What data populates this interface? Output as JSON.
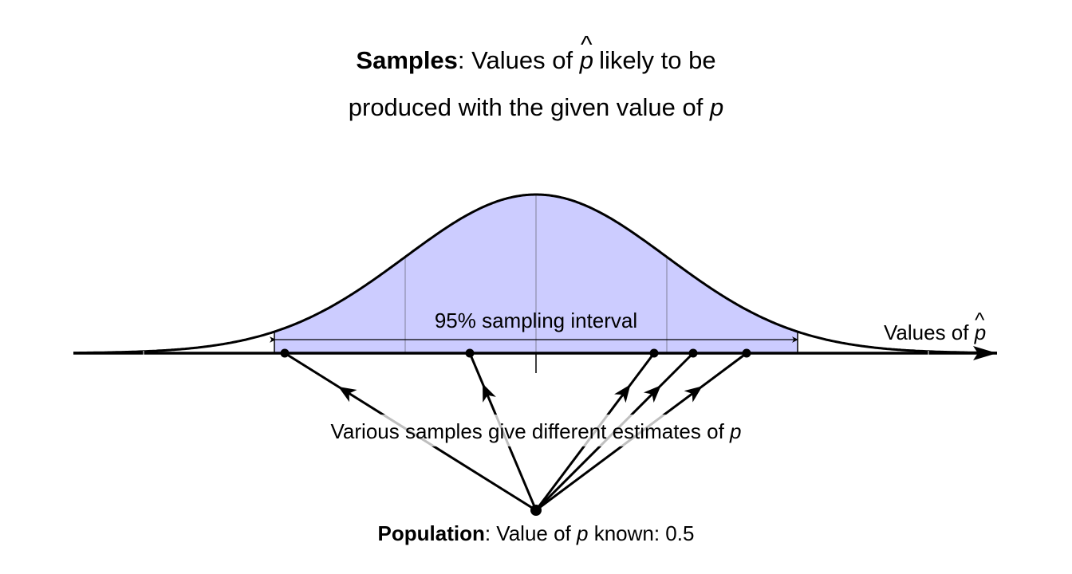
{
  "title": {
    "bold": "Samples",
    "line1_a": ": Values of ",
    "symbol": "p",
    "hat": "^",
    "line1_b": " likely to be",
    "line2_a": "produced with the given value of ",
    "line2_symbol": "p"
  },
  "interval_label": "95% sampling interval",
  "axis_label": {
    "text": "Values of ",
    "symbol": "p",
    "hat": "^"
  },
  "samples_label": {
    "text": "Various samples give different estimates of ",
    "symbol": "p"
  },
  "population_label": {
    "bold": "Population",
    "a": ": Value of ",
    "symbol": "p",
    "b": " known: 0.5"
  },
  "colors": {
    "fill": "#ccccff",
    "line": "#000000",
    "sd_lines": "#9999bb"
  },
  "population_value": 0.5
}
